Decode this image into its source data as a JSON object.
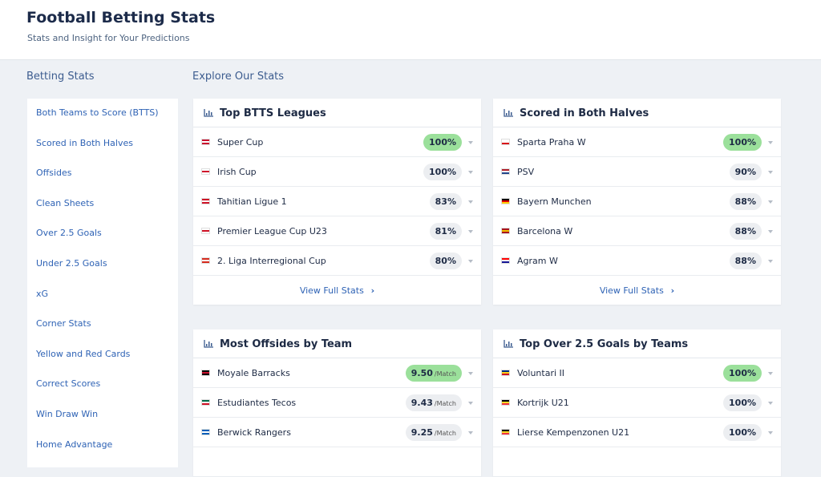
{
  "header": {
    "title": "Football Betting Stats",
    "subtitle": "Stats and Insight for Your Predictions"
  },
  "sidebar": {
    "title": "Betting Stats",
    "items": [
      "Both Teams to Score (BTTS)",
      "Scored in Both Halves",
      "Offsides",
      "Clean Sheets",
      "Over 2.5 Goals",
      "Under 2.5 Goals",
      "xG",
      "Corner Stats",
      "Yellow and Red Cards",
      "Correct Scores",
      "Win Draw Win",
      "Home Advantage"
    ]
  },
  "main": {
    "title": "Explore Our Stats",
    "cards": [
      {
        "title": "Top BTTS Leagues",
        "rows": [
          {
            "name": "Super Cup",
            "value": "100%"
          },
          {
            "name": "Irish Cup",
            "value": "100%"
          },
          {
            "name": "Tahitian Ligue 1",
            "value": "83%"
          },
          {
            "name": "Premier League Cup U23",
            "value": "81%"
          },
          {
            "name": "2. Liga Interregional Cup",
            "value": "80%"
          }
        ],
        "footer": "View Full Stats"
      },
      {
        "title": "Scored in Both Halves",
        "rows": [
          {
            "name": "Sparta Praha W",
            "value": "100%"
          },
          {
            "name": "PSV",
            "value": "90%"
          },
          {
            "name": "Bayern Munchen",
            "value": "88%"
          },
          {
            "name": "Barcelona W",
            "value": "88%"
          },
          {
            "name": "Agram W",
            "value": "88%"
          }
        ],
        "footer": "View Full Stats"
      },
      {
        "title": "Most Offsides by Team",
        "rows": [
          {
            "name": "Moyale Barracks",
            "value": "9.50",
            "unit": "/Match"
          },
          {
            "name": "Estudiantes Tecos",
            "value": "9.43",
            "unit": "/Match"
          },
          {
            "name": "Berwick Rangers",
            "value": "9.25",
            "unit": "/Match"
          }
        ]
      },
      {
        "title": "Top Over 2.5 Goals by Teams",
        "rows": [
          {
            "name": "Voluntari II",
            "value": "100%"
          },
          {
            "name": "Kortrijk U21",
            "value": "100%"
          },
          {
            "name": "Lierse Kempenzonen U21",
            "value": "100%"
          }
        ]
      }
    ]
  }
}
